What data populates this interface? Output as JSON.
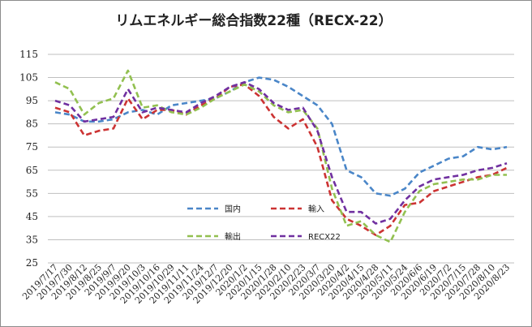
{
  "chart_data": {
    "type": "line",
    "title": "リムエネルギー総合指数22種（RECX-22）",
    "ylim": [
      25,
      115
    ],
    "yticks": [
      25,
      35,
      45,
      55,
      65,
      75,
      85,
      95,
      105,
      115
    ],
    "grid": "horizontal",
    "categories": [
      "2019/7/17",
      "2019/7/30",
      "2019/8/12",
      "2019/8/25",
      "2019/9/7",
      "2019/9/20",
      "2019/10/3",
      "2019/10/16",
      "2019/10/29",
      "2019/11/11",
      "2019/11/24",
      "2019/12/7",
      "2019/12/20",
      "2020/1/2",
      "2020/1/15",
      "2020/1/28",
      "2020/2/10",
      "2020/2/23",
      "2020/3/7",
      "2020/3/20",
      "2020/4/2",
      "2020/4/15",
      "2020/4/28",
      "2020/5/11",
      "2020/5/24",
      "2020/6/6",
      "2020/6/19",
      "2020/7/2",
      "2020/7/15",
      "2020/7/28",
      "2020/8/10",
      "2020/8/23"
    ],
    "series": [
      {
        "name": "国内",
        "color": "#4a86c8",
        "values": [
          90,
          89,
          86,
          86,
          87,
          90,
          91,
          89,
          93,
          94,
          95,
          96,
          99,
          103,
          105,
          104,
          101,
          97,
          93,
          85,
          65,
          62,
          55,
          54,
          57,
          64,
          67,
          70,
          71,
          75,
          74,
          75
        ]
      },
      {
        "name": "輸入",
        "color": "#cc3333",
        "values": [
          92,
          90,
          80,
          82,
          83,
          96,
          87,
          91,
          91,
          89,
          93,
          96,
          101,
          102,
          97,
          88,
          83,
          87,
          75,
          52,
          44,
          41,
          37,
          41,
          50,
          51,
          56,
          58,
          60,
          62,
          63,
          66
        ]
      },
      {
        "name": "輸出",
        "color": "#92c050",
        "values": [
          103,
          100,
          89,
          94,
          96,
          108,
          92,
          93,
          90,
          89,
          92,
          96,
          99,
          102,
          99,
          93,
          90,
          91,
          83,
          57,
          41,
          43,
          37,
          34,
          47,
          56,
          59,
          60,
          61,
          61,
          63,
          63
        ]
      },
      {
        "name": "RECX22",
        "color": "#7030a0",
        "values": [
          95,
          93,
          86,
          87,
          88,
          100,
          90,
          92,
          91,
          90,
          94,
          97,
          101,
          103,
          100,
          94,
          91,
          92,
          82,
          62,
          47,
          47,
          42,
          44,
          52,
          58,
          61,
          62,
          63,
          65,
          66,
          68
        ]
      }
    ],
    "legend": {
      "placement": "bottom-center",
      "columns": 2
    }
  }
}
